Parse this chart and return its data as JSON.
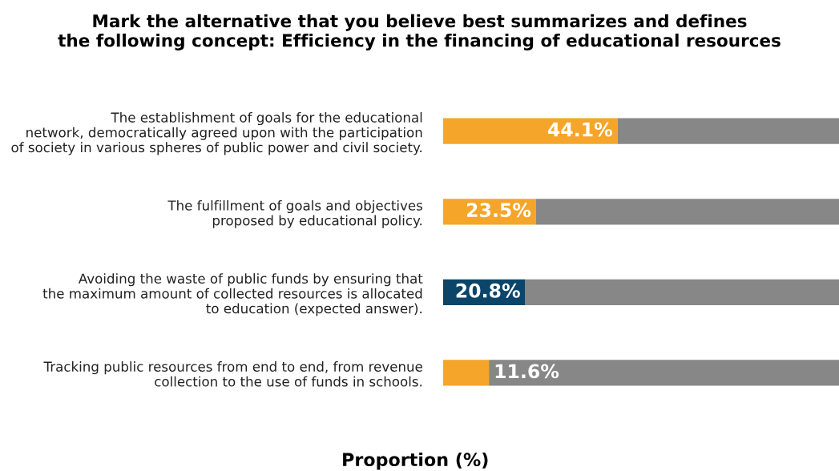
{
  "chart_data": {
    "type": "bar",
    "orientation": "horizontal",
    "stacked": true,
    "title": "Mark the alternative that you believe best summarizes and defines\nthe following concept: Efficiency in the financing of educational resources",
    "xlabel": "Proportion (%)",
    "categories": [
      "The establishment of goals for the educational\nnetwork, democratically agreed upon with the participation\nof society in various spheres of public power and civil society.",
      "The fulfillment of goals and objectives\nproposed by educational policy.",
      "Avoiding the waste of public funds by ensuring that\nthe maximum amount of collected resources is allocated\nto education (expected answer).",
      "Tracking public resources from end to end, from revenue\ncollection to the use of funds in schools."
    ],
    "series": [
      {
        "colors": [
          "#f5a52a",
          "#f5a52a",
          "#0b4569",
          "#f5a52a"
        ],
        "values": [
          44.1,
          23.5,
          20.8,
          11.6
        ],
        "value_labels": [
          "44.1%",
          "23.5%",
          "20.8%",
          "11.6%"
        ]
      },
      {
        "color": "#878787",
        "values": [
          55.9,
          76.5,
          79.2,
          88.4
        ]
      }
    ],
    "xlim": [
      0,
      100
    ],
    "tick_labels": "y",
    "grid": false
  }
}
